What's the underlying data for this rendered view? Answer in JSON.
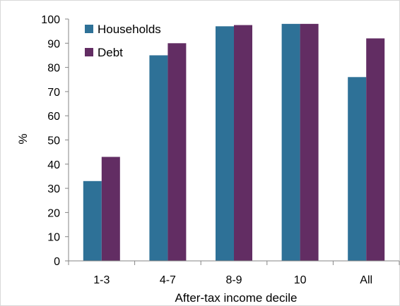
{
  "chart_data": {
    "type": "bar",
    "title": "",
    "xlabel": "After-tax income decile",
    "ylabel": "%",
    "categories": [
      "1-3",
      "4-7",
      "8-9",
      "10",
      "All"
    ],
    "series": [
      {
        "name": "Households",
        "values": [
          33,
          85,
          97,
          98,
          76
        ],
        "color": "#2E7197"
      },
      {
        "name": "Debt",
        "values": [
          43,
          90,
          97.5,
          98,
          92
        ],
        "color": "#622D63"
      }
    ],
    "ylim": [
      0,
      100
    ],
    "yticks": [
      0,
      10,
      20,
      30,
      40,
      50,
      60,
      70,
      80,
      90,
      100
    ],
    "grid": false,
    "legend_position": "top-left"
  }
}
